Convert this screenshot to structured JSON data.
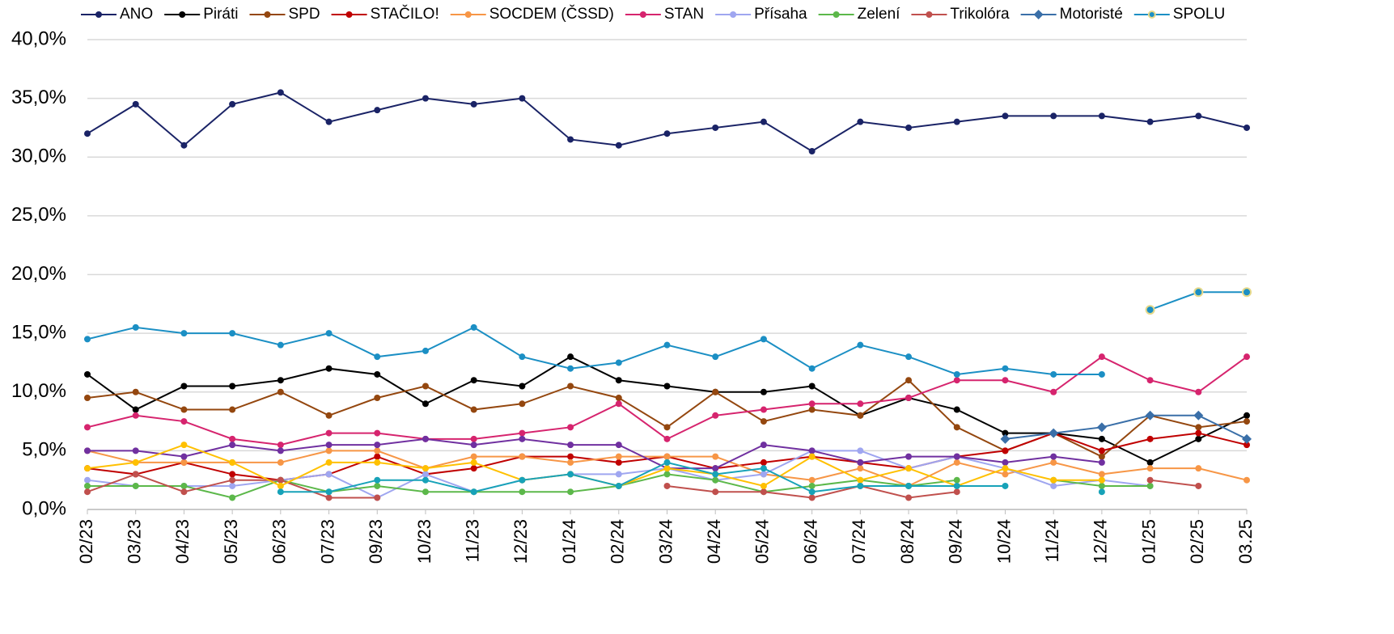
{
  "chart_data": {
    "type": "line",
    "categories": [
      "02/23",
      "03/23",
      "04/23",
      "05/23",
      "06/23",
      "07/23",
      "09/23",
      "10/23",
      "11/23",
      "12/23",
      "01/24",
      "02/24",
      "03/24",
      "04/24",
      "05/24",
      "06/24",
      "07/24",
      "08/24",
      "09/24",
      "10/24",
      "11/24",
      "12/24",
      "01/25",
      "02/25",
      "03.25"
    ],
    "ylim": [
      0,
      40
    ],
    "yticks": [
      {
        "value": 0,
        "label": "0,0%"
      },
      {
        "value": 5,
        "label": "5,0%"
      },
      {
        "value": 10,
        "label": "10,0%"
      },
      {
        "value": 15,
        "label": "15,0%"
      },
      {
        "value": 20,
        "label": "20,0%"
      },
      {
        "value": 25,
        "label": "25,0%"
      },
      {
        "value": 30,
        "label": "30,0%"
      },
      {
        "value": 35,
        "label": "35,0%"
      },
      {
        "value": 40,
        "label": "40,0%"
      }
    ],
    "grid": true,
    "legend": "top",
    "series": [
      {
        "name": "ANO",
        "color": "#1a2366",
        "values": [
          32,
          34.5,
          31,
          34.5,
          35.5,
          33,
          34,
          35,
          34.5,
          35,
          31.5,
          31,
          32,
          32.5,
          33,
          30.5,
          33,
          32.5,
          33,
          33.5,
          33.5,
          33.5,
          33,
          33.5,
          32.5
        ]
      },
      {
        "name": "Piráti",
        "color": "#000000",
        "values": [
          11.5,
          8.5,
          10.5,
          10.5,
          11,
          12,
          11.5,
          9,
          11,
          10.5,
          13,
          11,
          10.5,
          10,
          10,
          10.5,
          8,
          9.5,
          8.5,
          6.5,
          6.5,
          6,
          4,
          6,
          8
        ]
      },
      {
        "name": "SPD",
        "color": "#94470f",
        "values": [
          9.5,
          10,
          8.5,
          8.5,
          10,
          8,
          9.5,
          10.5,
          8.5,
          9,
          10.5,
          9.5,
          7,
          10,
          7.5,
          8.5,
          8,
          11,
          7,
          5,
          6.5,
          4.5,
          8,
          7,
          7.5
        ]
      },
      {
        "name": "STAČILO!",
        "color": "#c00000",
        "values": [
          3.5,
          3,
          4,
          3,
          2.5,
          3,
          4.5,
          3,
          3.5,
          4.5,
          4.5,
          4,
          4.5,
          3.5,
          4,
          4.5,
          4,
          3.5,
          4.5,
          5,
          6.5,
          5,
          6,
          6.5,
          5.5
        ]
      },
      {
        "name": "SOCDEM (ČSSD)",
        "color": "#f79646",
        "values": [
          5,
          4,
          4,
          4,
          4,
          5,
          5,
          3.5,
          4.5,
          4.5,
          4,
          4.5,
          4.5,
          4.5,
          3,
          2.5,
          3.5,
          2,
          4,
          3,
          4,
          3,
          3.5,
          3.5,
          2.5
        ]
      },
      {
        "name": "STAN",
        "color": "#d6246e",
        "values": [
          7,
          8,
          7.5,
          6,
          5.5,
          6.5,
          6.5,
          6,
          6,
          6.5,
          7,
          9,
          6,
          8,
          8.5,
          9,
          9,
          9.5,
          11,
          11,
          10,
          13,
          11,
          10,
          13
        ]
      },
      {
        "name": "Přísaha",
        "color": "#9fa6f0",
        "values": [
          2.5,
          2,
          2,
          2,
          2.5,
          3,
          1,
          3,
          1.5,
          2.5,
          3,
          3,
          3.5,
          2.5,
          3,
          5,
          5,
          3.5,
          4.5,
          3.5,
          2,
          2.5,
          2,
          null,
          null
        ]
      },
      {
        "name": "Zelení",
        "color": "#5cb84a",
        "values": [
          2,
          2,
          2,
          1,
          2.5,
          1.5,
          2,
          1.5,
          1.5,
          1.5,
          1.5,
          2,
          3,
          2.5,
          1.5,
          2,
          2.5,
          2,
          2.5,
          null,
          2.5,
          2,
          2,
          null,
          null
        ]
      },
      {
        "name": "Trikolóra",
        "color": "#c0504d",
        "values": [
          1.5,
          3,
          1.5,
          2.5,
          2.5,
          1,
          1,
          null,
          null,
          null,
          null,
          null,
          2,
          1.5,
          1.5,
          1,
          2,
          1,
          1.5,
          null,
          null,
          null,
          2.5,
          2,
          null
        ]
      },
      {
        "name": "Motoristé",
        "color": "#3a6fa8",
        "values": [
          null,
          null,
          null,
          null,
          null,
          null,
          null,
          null,
          null,
          null,
          null,
          null,
          null,
          null,
          null,
          null,
          null,
          null,
          null,
          6,
          6.5,
          7,
          8,
          8,
          6
        ]
      },
      {
        "name": "SPOLU",
        "color": "#1b8fc4",
        "values": [
          null,
          null,
          null,
          null,
          null,
          null,
          null,
          null,
          null,
          null,
          null,
          null,
          null,
          null,
          null,
          null,
          null,
          null,
          null,
          null,
          null,
          null,
          17,
          18.5,
          18.5
        ]
      },
      {
        "color": "#1b8fc4",
        "values": [
          14.5,
          15.5,
          15,
          15,
          14,
          15,
          13,
          13.5,
          15.5,
          13,
          12,
          12.5,
          14,
          13,
          14.5,
          12,
          14,
          13,
          11.5,
          12,
          11.5,
          11.5,
          null,
          null,
          null
        ]
      },
      {
        "color": "#7030a0",
        "values": [
          5,
          5,
          4.5,
          5.5,
          5,
          5.5,
          5.5,
          6,
          5.5,
          6,
          5.5,
          5.5,
          3.5,
          3.5,
          5.5,
          5,
          4,
          4.5,
          4.5,
          4,
          4.5,
          4,
          null,
          null,
          null
        ]
      },
      {
        "color": "#ffc000",
        "values": [
          3.5,
          4,
          5.5,
          4,
          2,
          4,
          4,
          3.5,
          4,
          2.5,
          3,
          2,
          3.5,
          3,
          2,
          4.5,
          2.5,
          3.5,
          2,
          3.5,
          2.5,
          2.5,
          null,
          null,
          null
        ]
      },
      {
        "color": "#17a2b8",
        "values": [
          null,
          null,
          null,
          null,
          1.5,
          1.5,
          2.5,
          2.5,
          1.5,
          2.5,
          3,
          2,
          4,
          3,
          3.5,
          1.5,
          2,
          2,
          2,
          2,
          null,
          1.5,
          null,
          null,
          null
        ]
      }
    ]
  }
}
